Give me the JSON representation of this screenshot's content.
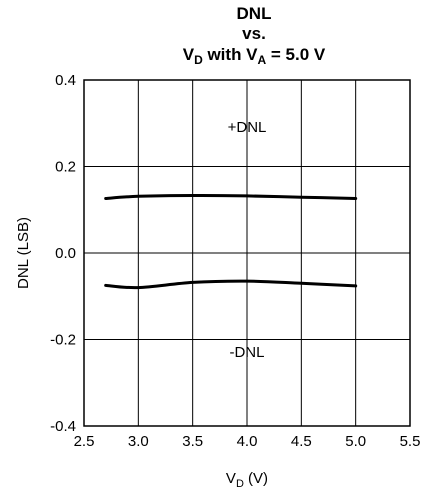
{
  "chart_data": {
    "type": "line",
    "title": {
      "line1": "DNL",
      "line2": "vs.",
      "line3": {
        "a": "V",
        "a_sub": "D",
        "b": " with V",
        "b_sub": "A",
        "c": " = 5.0 V"
      }
    },
    "ylabel": "DNL (LSB)",
    "xlabel": {
      "main": "V",
      "sub": "D",
      "rest": " (V)"
    },
    "xlim": [
      2.5,
      5.5
    ],
    "ylim": [
      -0.4,
      0.4
    ],
    "xticks": [
      "2.5",
      "3.0",
      "3.5",
      "4.0",
      "4.5",
      "5.0",
      "5.5"
    ],
    "yticks": [
      "0.4",
      "0.2",
      "0.0",
      "-0.2",
      "-0.4"
    ],
    "grid": true,
    "series": [
      {
        "x": [
          2.7,
          3.0,
          3.5,
          4.0,
          4.5,
          5.0
        ],
        "y": [
          0.126,
          0.131,
          0.133,
          0.132,
          0.129,
          0.126
        ]
      },
      {
        "x": [
          2.7,
          3.0,
          3.5,
          4.0,
          4.5,
          5.0
        ],
        "y": [
          -0.075,
          -0.08,
          -0.068,
          -0.065,
          -0.07,
          -0.076
        ]
      }
    ],
    "annotations": [
      {
        "text": "+DNL",
        "x": 4.0,
        "y": 0.28
      },
      {
        "text": "-DNL",
        "x": 4.0,
        "y": -0.24
      }
    ],
    "colors": {
      "line": "#000000",
      "grid": "#000000"
    }
  }
}
